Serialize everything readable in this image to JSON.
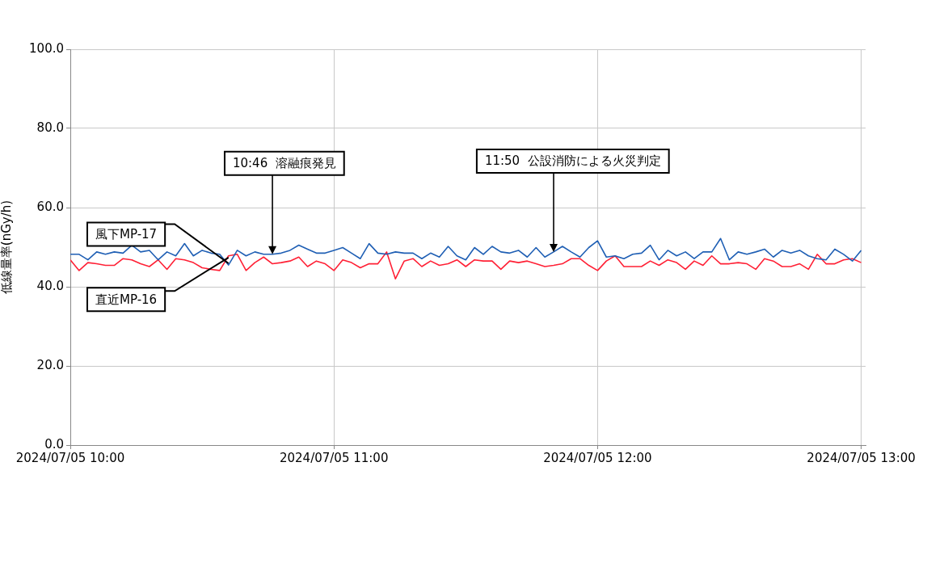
{
  "chart_data": {
    "type": "line",
    "ylabel": "低線量率(nGy/h)",
    "x": [
      "2024-07-05T10:00",
      "2024-07-05T10:02",
      "2024-07-05T10:04",
      "2024-07-05T10:06",
      "2024-07-05T10:08",
      "2024-07-05T10:10",
      "2024-07-05T10:12",
      "2024-07-05T10:14",
      "2024-07-05T10:16",
      "2024-07-05T10:18",
      "2024-07-05T10:20",
      "2024-07-05T10:22",
      "2024-07-05T10:24",
      "2024-07-05T10:26",
      "2024-07-05T10:28",
      "2024-07-05T10:30",
      "2024-07-05T10:32",
      "2024-07-05T10:34",
      "2024-07-05T10:36",
      "2024-07-05T10:38",
      "2024-07-05T10:40",
      "2024-07-05T10:42",
      "2024-07-05T10:44",
      "2024-07-05T10:46",
      "2024-07-05T10:48",
      "2024-07-05T10:50",
      "2024-07-05T10:52",
      "2024-07-05T10:54",
      "2024-07-05T10:56",
      "2024-07-05T10:58",
      "2024-07-05T11:00",
      "2024-07-05T11:02",
      "2024-07-05T11:04",
      "2024-07-05T11:06",
      "2024-07-05T11:08",
      "2024-07-05T11:10",
      "2024-07-05T11:12",
      "2024-07-05T11:14",
      "2024-07-05T11:16",
      "2024-07-05T11:18",
      "2024-07-05T11:20",
      "2024-07-05T11:22",
      "2024-07-05T11:24",
      "2024-07-05T11:26",
      "2024-07-05T11:28",
      "2024-07-05T11:30",
      "2024-07-05T11:32",
      "2024-07-05T11:34",
      "2024-07-05T11:36",
      "2024-07-05T11:38",
      "2024-07-05T11:40",
      "2024-07-05T11:42",
      "2024-07-05T11:44",
      "2024-07-05T11:46",
      "2024-07-05T11:48",
      "2024-07-05T11:50",
      "2024-07-05T11:52",
      "2024-07-05T11:54",
      "2024-07-05T11:56",
      "2024-07-05T11:58",
      "2024-07-05T12:00",
      "2024-07-05T12:02",
      "2024-07-05T12:04",
      "2024-07-05T12:06",
      "2024-07-05T12:08",
      "2024-07-05T12:10",
      "2024-07-05T12:12",
      "2024-07-05T12:14",
      "2024-07-05T12:16",
      "2024-07-05T12:18",
      "2024-07-05T12:20",
      "2024-07-05T12:22",
      "2024-07-05T12:24",
      "2024-07-05T12:26",
      "2024-07-05T12:28",
      "2024-07-05T12:30",
      "2024-07-05T12:32",
      "2024-07-05T12:34",
      "2024-07-05T12:36",
      "2024-07-05T12:38",
      "2024-07-05T12:40",
      "2024-07-05T12:42",
      "2024-07-05T12:44",
      "2024-07-05T12:46",
      "2024-07-05T12:48",
      "2024-07-05T12:50",
      "2024-07-05T12:52",
      "2024-07-05T12:54",
      "2024-07-05T12:56",
      "2024-07-05T12:58",
      "2024-07-05T13:00"
    ],
    "series": [
      {
        "name": "風下MP-17",
        "color": "#1f5fb4",
        "values": [
          48.2,
          48.2,
          46.8,
          48.8,
          48.2,
          48.8,
          48.5,
          50.5,
          48.8,
          49.2,
          46.8,
          48.8,
          47.8,
          50.9,
          47.8,
          49.2,
          48.5,
          48.2,
          45.5,
          49.2,
          47.8,
          48.8,
          48.2,
          48.2,
          48.5,
          49.2,
          50.5,
          49.5,
          48.5,
          48.5,
          49.2,
          49.9,
          48.5,
          47.1,
          50.9,
          48.5,
          48.2,
          48.8,
          48.5,
          48.5,
          47.1,
          48.5,
          47.5,
          50.2,
          47.8,
          46.8,
          49.9,
          48.2,
          50.2,
          48.8,
          48.5,
          49.2,
          47.5,
          49.9,
          47.5,
          48.8,
          50.2,
          48.8,
          47.5,
          49.9,
          51.6,
          47.5,
          47.8,
          47.1,
          48.2,
          48.5,
          50.5,
          46.8,
          49.2,
          47.8,
          48.8,
          47.1,
          48.8,
          48.8,
          52.2,
          46.8,
          48.8,
          48.2,
          48.8,
          49.5,
          47.5,
          49.2,
          48.5,
          49.2,
          47.8,
          47.1,
          46.8,
          49.5,
          48.2,
          46.5,
          49.2
        ]
      },
      {
        "name": "直近MP-16",
        "color": "#ff2035",
        "values": [
          46.8,
          44.1,
          46.1,
          45.8,
          45.4,
          45.4,
          47.1,
          46.8,
          45.8,
          45.1,
          46.8,
          44.4,
          47.1,
          46.8,
          46.1,
          44.8,
          44.4,
          44.1,
          47.8,
          48.2,
          44.1,
          46.1,
          47.5,
          45.8,
          46.1,
          46.5,
          47.5,
          45.1,
          46.5,
          45.8,
          44.1,
          46.8,
          46.1,
          44.8,
          45.8,
          45.8,
          48.8,
          42.0,
          46.5,
          47.1,
          45.1,
          46.5,
          45.4,
          45.8,
          46.8,
          45.1,
          46.8,
          46.5,
          46.5,
          44.4,
          46.5,
          46.1,
          46.5,
          45.8,
          45.1,
          45.4,
          45.8,
          47.1,
          47.1,
          45.4,
          44.1,
          46.5,
          47.8,
          45.1,
          45.1,
          45.1,
          46.5,
          45.4,
          46.8,
          46.1,
          44.4,
          46.5,
          45.4,
          47.8,
          45.8,
          45.8,
          46.1,
          45.8,
          44.4,
          47.1,
          46.5,
          45.1,
          45.1,
          45.8,
          44.4,
          48.2,
          45.8,
          45.8,
          46.8,
          47.1,
          46.1
        ]
      }
    ],
    "xlim": [
      "2024-07-05T10:00",
      "2024-07-05T13:01"
    ],
    "xticks": [
      {
        "value": "2024-07-05T10:00",
        "label": "2024/07/05 10:00"
      },
      {
        "value": "2024-07-05T11:00",
        "label": "2024/07/05 11:00"
      },
      {
        "value": "2024-07-05T12:00",
        "label": "2024/07/05 12:00"
      },
      {
        "value": "2024-07-05T13:00",
        "label": "2024/07/05 13:00"
      }
    ],
    "ylim": [
      0,
      100
    ],
    "yticks": [
      {
        "value": 0,
        "label": "0.0"
      },
      {
        "value": 20,
        "label": "20.0"
      },
      {
        "value": 40,
        "label": "40.0"
      },
      {
        "value": 60,
        "label": "60.0"
      },
      {
        "value": 80,
        "label": "80.0"
      },
      {
        "value": 100,
        "label": "100.0"
      }
    ],
    "annotations": [
      {
        "text": "10:46  溶融痕発見",
        "x": "2024-07-05T10:46",
        "y": 48.2
      },
      {
        "text": "11:50  公設消防による火災判定",
        "x": "2024-07-05T11:50",
        "y": 48.8
      }
    ],
    "grid": true,
    "legend": false,
    "marker": "none",
    "line_style": "solid"
  }
}
